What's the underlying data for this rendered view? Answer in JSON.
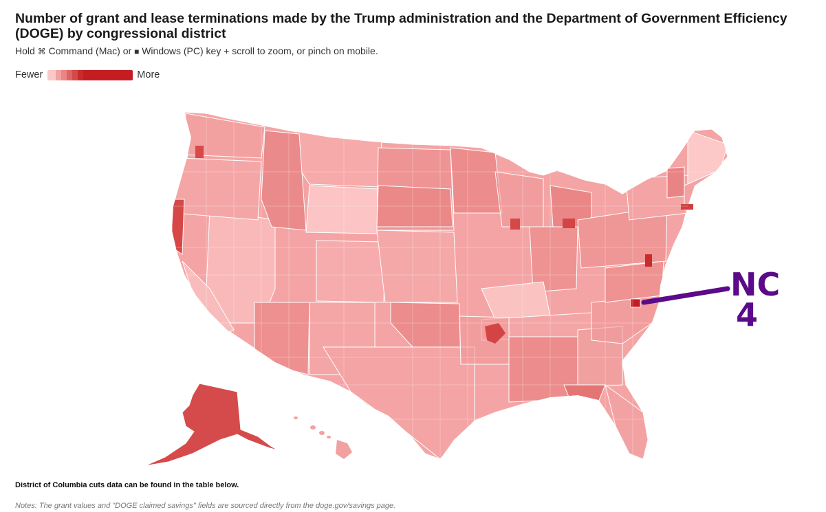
{
  "title": "Number of grant and lease terminations made by the Trump administration and the Department of Government Efficiency (DOGE) by congressional district",
  "subtitle": {
    "hold": "Hold",
    "cmd_glyph": "⌘",
    "cmd_text": "Command (Mac) or",
    "win_glyph": "■",
    "win_text": "Windows (PC) key + scroll to zoom, or pinch on mobile."
  },
  "legend": {
    "low_label": "Fewer",
    "high_label": "More",
    "colors": [
      "#f9c9c9",
      "#f2a0a0",
      "#ea8585",
      "#e06363",
      "#d44a4a",
      "#c92a2a",
      "#c31d22"
    ]
  },
  "map": {
    "base_color": "#f4a4a4",
    "annotation": {
      "line1": "NC",
      "line2": "4",
      "color": "#5b0a8a"
    },
    "annotated_district": "NC 4"
  },
  "footnote": "District of Columbia cuts data can be found in the table below.",
  "notes": "Notes: The grant values and \"DOGE claimed savings\" fields are sourced directly from the doge.gov/savings page."
}
